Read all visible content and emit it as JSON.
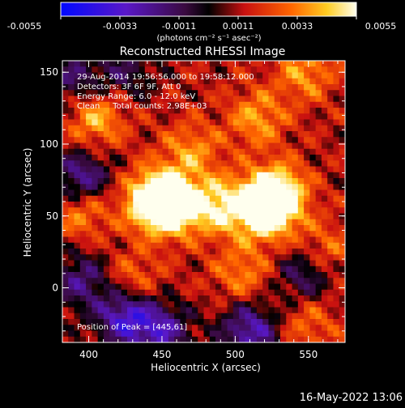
{
  "chart_data": {
    "type": "heatmap",
    "title": "Reconstructed RHESSI Image",
    "xlabel": "Heliocentric X (arcsec)",
    "ylabel": "Heliocentric Y (arcsec)",
    "xlim": [
      382,
      575
    ],
    "ylim": [
      -38,
      158
    ],
    "x_ticks": [
      "400",
      "450",
      "500",
      "550"
    ],
    "y_ticks": [
      "0",
      "50",
      "100",
      "150"
    ],
    "colorbar": {
      "range": [
        -0.0055,
        0.0055
      ],
      "ticks": [
        "-0.0055",
        "-0.0033",
        "-0.0011",
        "0.0011",
        "0.0033",
        "0.0055"
      ],
      "unit_label": "(photons cm⁻² s⁻¹ asec⁻²)"
    },
    "annotations": [
      "29-Aug-2014 19:56:56.000 to 19:58:12.000",
      "Detectors: 3F 6F 9F, Att 0",
      "Energy Range: 6.0 - 12.0 keV",
      "Clean     Total counts: 2.98E+03"
    ],
    "peak_label": "Position of Peak = [445,61]",
    "grid": false,
    "sources": [
      {
        "x": 445,
        "y": 61,
        "value": 0.0055
      },
      {
        "x": 458,
        "y": 57,
        "value": 0.0048
      },
      {
        "x": 528,
        "y": 65,
        "value": 0.0052
      },
      {
        "x": 520,
        "y": 53,
        "value": 0.0046
      },
      {
        "x": 490,
        "y": 57,
        "value": 0.0036
      },
      {
        "x": 405,
        "y": 118,
        "value": 0.003
      },
      {
        "x": 395,
        "y": 55,
        "value": 0.0028
      },
      {
        "x": 515,
        "y": 118,
        "value": 0.0026
      },
      {
        "x": 548,
        "y": 150,
        "value": 0.0025
      },
      {
        "x": 505,
        "y": 10,
        "value": 0.0022
      },
      {
        "x": 560,
        "y": 25,
        "value": 0.0022
      },
      {
        "x": 430,
        "y": 5,
        "value": 0.002
      },
      {
        "x": 470,
        "y": 95,
        "value": 0.0024
      },
      {
        "x": 550,
        "y": -25,
        "value": 0.0018
      }
    ],
    "negative_regions": [
      {
        "x": 395,
        "y": 75,
        "value": -0.004
      },
      {
        "x": 425,
        "y": -20,
        "value": -0.0045
      },
      {
        "x": 395,
        "y": 5,
        "value": -0.003
      },
      {
        "x": 510,
        "y": -30,
        "value": -0.004
      },
      {
        "x": 548,
        "y": 10,
        "value": -0.003
      },
      {
        "x": 450,
        "y": -30,
        "value": -0.0035
      },
      {
        "x": 390,
        "y": 145,
        "value": -0.0025
      },
      {
        "x": 425,
        "y": 150,
        "value": -0.002
      }
    ]
  },
  "footer": {
    "date": "16-May-2022 13:06"
  }
}
